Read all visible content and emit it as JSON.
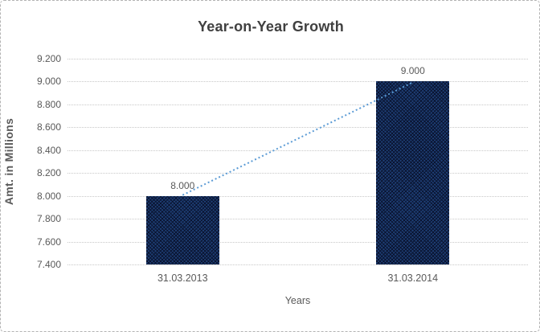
{
  "frame": {
    "background": "#ffffff",
    "border_color": "#b3b3b3"
  },
  "chart_data": {
    "type": "bar",
    "title": "Year-on-Year Growth",
    "xlabel": "Years",
    "ylabel": "Amt. in Millions",
    "categories": [
      "31.03.2013",
      "31.03.2014"
    ],
    "values": [
      8000,
      9000
    ],
    "value_labels": [
      "8.000",
      "9.000"
    ],
    "ylim": [
      7400,
      9200
    ],
    "ytick_step": 200,
    "ytick_labels": [
      "9.200",
      "9.000",
      "8.800",
      "8.600",
      "8.400",
      "8.200",
      "8.000",
      "7.800",
      "7.600",
      "7.400"
    ],
    "grid": {
      "horizontal": true,
      "style": "dotted",
      "color": "#c8c8c8"
    },
    "legend": "none",
    "bar_color": "#17375E",
    "bar_hatch_color": "#0a1430",
    "bar_highlight_color": "#1e3f76",
    "trendline": {
      "type": "linear",
      "style": "dotted",
      "color": "#5B9BD5",
      "from": 8000,
      "to": 9000
    },
    "text_color": "#595959",
    "title_color": "#404040"
  }
}
